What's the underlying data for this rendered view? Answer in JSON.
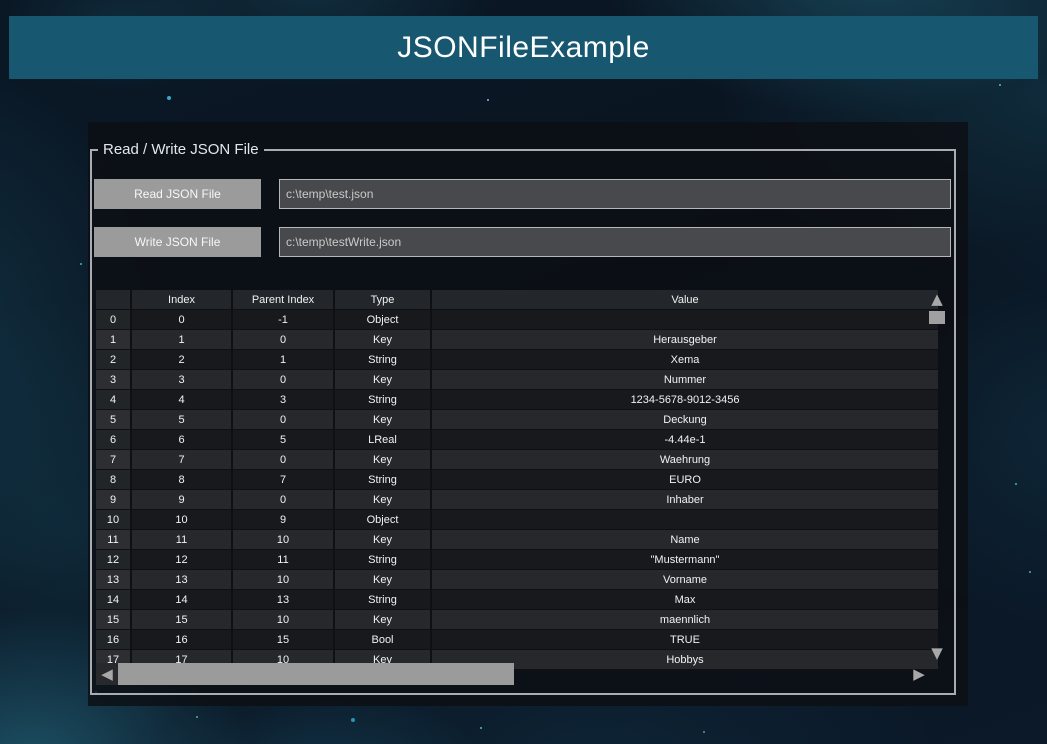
{
  "title": "JSONFileExample",
  "group": {
    "legend": "Read / Write JSON File",
    "read_button_label": "Read JSON File",
    "read_path_value": "c:\\temp\\test.json",
    "write_button_label": "Write JSON File",
    "write_path_value": "c:\\temp\\testWrite.json"
  },
  "table": {
    "columns": [
      "",
      "Index",
      "Parent Index",
      "Type",
      "Value"
    ],
    "rows": [
      [
        "0",
        "0",
        "-1",
        "Object",
        ""
      ],
      [
        "1",
        "1",
        "0",
        "Key",
        "Herausgeber"
      ],
      [
        "2",
        "2",
        "1",
        "String",
        "Xema"
      ],
      [
        "3",
        "3",
        "0",
        "Key",
        "Nummer"
      ],
      [
        "4",
        "4",
        "3",
        "String",
        "1234-5678-9012-3456"
      ],
      [
        "5",
        "5",
        "0",
        "Key",
        "Deckung"
      ],
      [
        "6",
        "6",
        "5",
        "LReal",
        "-4.44e-1"
      ],
      [
        "7",
        "7",
        "0",
        "Key",
        "Waehrung"
      ],
      [
        "8",
        "8",
        "7",
        "String",
        "EURO"
      ],
      [
        "9",
        "9",
        "0",
        "Key",
        "Inhaber"
      ],
      [
        "10",
        "10",
        "9",
        "Object",
        ""
      ],
      [
        "11",
        "11",
        "10",
        "Key",
        "Name"
      ],
      [
        "12",
        "12",
        "11",
        "String",
        "\"Mustermann\""
      ],
      [
        "13",
        "13",
        "10",
        "Key",
        "Vorname"
      ],
      [
        "14",
        "14",
        "13",
        "String",
        "Max"
      ],
      [
        "15",
        "15",
        "10",
        "Key",
        "maennlich"
      ],
      [
        "16",
        "16",
        "15",
        "Bool",
        "TRUE"
      ],
      [
        "17",
        "17",
        "10",
        "Key",
        "Hobbys"
      ]
    ]
  },
  "scrollbars": {
    "up_icon": "▲",
    "down_icon": "▼",
    "left_icon": "◀",
    "right_icon": "▶"
  },
  "colors": {
    "titlebar": "#175870",
    "button": "#9b9b9b",
    "input_bg": "#47494c",
    "scroll_thumb": "#9e9e9e",
    "row_even": "#17191c",
    "row_odd": "#26282b",
    "accent_smoke": "#3fc2e4"
  }
}
